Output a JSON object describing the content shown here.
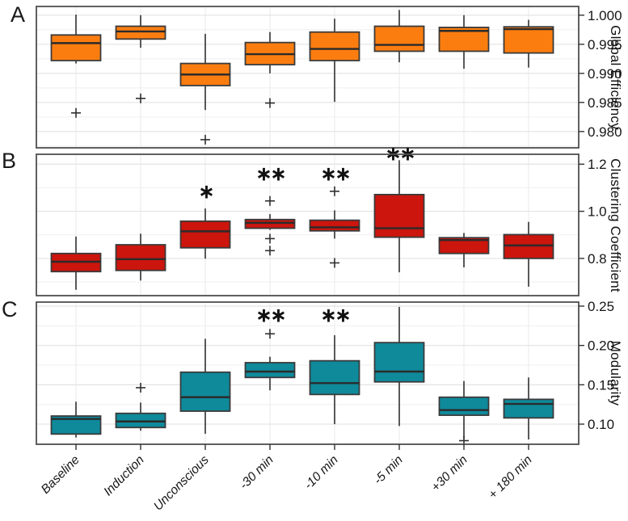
{
  "figure": {
    "background": "#ffffff",
    "panel_border_color": "#4f4f4f",
    "grid_major_color": "#e3e3e3",
    "grid_minor_color": "#efefef",
    "vgrid_color": "#e8e8e8",
    "whisker_color": "#2f2f2f",
    "box_stroke_color": "#3b3b3b",
    "median_color": "#2b2b2b",
    "outlier_marker": "plus",
    "sig_color": "#111111",
    "tick_color": "#333333",
    "tick_label_color": "#161616",
    "categories": [
      "Baseline",
      "Induction",
      "Unconscious",
      "-30 min",
      "-10 min",
      "-5 min",
      "+30 min",
      "+ 180 min"
    ]
  },
  "chart_data": [
    {
      "type": "box",
      "panel_label": "A",
      "ylabel": "Global Efficiency",
      "box_color": "#FB7D10",
      "legend_position": "none",
      "grid": true,
      "categories": [
        "Baseline",
        "Induction",
        "Unconscious",
        "-30 min",
        "-10 min",
        "-5 min",
        "+30 min",
        "+ 180 min"
      ],
      "ylim": [
        0.9772,
        1.0015
      ],
      "yticks": [
        1.0,
        0.995,
        0.99,
        0.985,
        0.98
      ],
      "ytick_labels": [
        "1.000",
        "0.995",
        "0.990",
        "0.985",
        "0.980"
      ],
      "minor_gridlines": [
        0.9775,
        0.9825,
        0.9875,
        0.9925,
        0.9975
      ],
      "boxes": [
        {
          "category": "Baseline",
          "whislo": 0.9917,
          "q1": 0.9922,
          "med": 0.9952,
          "q3": 0.9966,
          "whishi": 1.0001,
          "outliers": [
            0.9832
          ],
          "sig": null,
          "sig_y": null
        },
        {
          "category": "Induction",
          "whislo": 0.9944,
          "q1": 0.9959,
          "med": 0.9972,
          "q3": 0.9981,
          "whishi": 1.0,
          "outliers": [
            0.9857
          ],
          "sig": null,
          "sig_y": null
        },
        {
          "category": "Unconscious",
          "whislo": 0.9837,
          "q1": 0.9879,
          "med": 0.9898,
          "q3": 0.9917,
          "whishi": 0.9968,
          "outliers": [
            0.9786
          ],
          "sig": null,
          "sig_y": null
        },
        {
          "category": "-30 min",
          "whislo": 0.99,
          "q1": 0.9915,
          "med": 0.9933,
          "q3": 0.9953,
          "whishi": 0.9971,
          "outliers": [
            0.9849
          ],
          "sig": null,
          "sig_y": null
        },
        {
          "category": "-10 min",
          "whislo": 0.9851,
          "q1": 0.9922,
          "med": 0.9942,
          "q3": 0.9971,
          "whishi": 0.9994,
          "outliers": [],
          "sig": null,
          "sig_y": null
        },
        {
          "category": "-5 min",
          "whislo": 0.9919,
          "q1": 0.9938,
          "med": 0.9949,
          "q3": 0.9981,
          "whishi": 1.0009,
          "outliers": [],
          "sig": null,
          "sig_y": null
        },
        {
          "category": "+30 min",
          "whislo": 0.9908,
          "q1": 0.9938,
          "med": 0.9973,
          "q3": 0.9979,
          "whishi": 1.0,
          "outliers": [],
          "sig": null,
          "sig_y": null
        },
        {
          "category": "+ 180 min",
          "whislo": 0.991,
          "q1": 0.9935,
          "med": 0.9976,
          "q3": 0.998,
          "whishi": 0.9992,
          "outliers": [],
          "sig": null,
          "sig_y": null
        }
      ]
    },
    {
      "type": "box",
      "panel_label": "B",
      "ylabel": "Clustering Coefficient",
      "box_color": "#CB150D",
      "legend_position": "none",
      "grid": true,
      "categories": [
        "Baseline",
        "Induction",
        "Unconscious",
        "-30 min",
        "-10 min",
        "-5 min",
        "+30 min",
        "+ 180 min"
      ],
      "ylim": [
        0.642,
        1.242
      ],
      "yticks": [
        1.2,
        1.0,
        0.8
      ],
      "ytick_labels": [
        "1.2",
        "1.0",
        "0.8"
      ],
      "minor_gridlines": [
        0.7,
        0.9,
        1.1
      ],
      "boxes": [
        {
          "category": "Baseline",
          "whislo": 0.667,
          "q1": 0.744,
          "med": 0.786,
          "q3": 0.821,
          "whishi": 0.893,
          "outliers": [],
          "sig": null,
          "sig_y": null
        },
        {
          "category": "Induction",
          "whislo": 0.706,
          "q1": 0.749,
          "med": 0.797,
          "q3": 0.858,
          "whishi": 0.905,
          "outliers": [],
          "sig": null,
          "sig_y": null
        },
        {
          "category": "Unconscious",
          "whislo": 0.799,
          "q1": 0.845,
          "med": 0.915,
          "q3": 0.958,
          "whishi": 1.012,
          "outliers": [],
          "sig": "*",
          "sig_y": 1.085
        },
        {
          "category": "-30 min",
          "whislo": 0.921,
          "q1": 0.928,
          "med": 0.951,
          "q3": 0.965,
          "whishi": 0.988,
          "outliers": [
            1.044,
            0.884,
            0.833
          ],
          "sig": "**",
          "sig_y": 1.16
        },
        {
          "category": "-10 min",
          "whislo": 0.884,
          "q1": 0.917,
          "med": 0.932,
          "q3": 0.962,
          "whishi": 1.004,
          "outliers": [
            1.085,
            0.781
          ],
          "sig": "**",
          "sig_y": 1.16
        },
        {
          "category": "-5 min",
          "whislo": 0.741,
          "q1": 0.89,
          "med": 0.928,
          "q3": 1.071,
          "whishi": 1.217,
          "outliers": [],
          "sig": "**",
          "sig_y": 1.246
        },
        {
          "category": "+30 min",
          "whislo": 0.762,
          "q1": 0.821,
          "med": 0.878,
          "q3": 0.888,
          "whishi": 0.908,
          "outliers": [],
          "sig": null,
          "sig_y": null
        },
        {
          "category": "+ 180 min",
          "whislo": 0.68,
          "q1": 0.8,
          "med": 0.855,
          "q3": 0.901,
          "whishi": 0.955,
          "outliers": [],
          "sig": null,
          "sig_y": null
        }
      ]
    },
    {
      "type": "box",
      "panel_label": "C",
      "ylabel": "Modularity",
      "box_color": "#0E8A9B",
      "legend_position": "none",
      "grid": true,
      "categories": [
        "Baseline",
        "Induction",
        "Unconscious",
        "-30 min",
        "-10 min",
        "-5 min",
        "+30 min",
        "+ 180 min"
      ],
      "ylim": [
        0.0744,
        0.2551
      ],
      "yticks": [
        0.25,
        0.2,
        0.15,
        0.1
      ],
      "ytick_labels": [
        "0.25",
        "0.20",
        "0.15",
        "0.10"
      ],
      "minor_gridlines": [
        0.075,
        0.125,
        0.175,
        0.225
      ],
      "boxes": [
        {
          "category": "Baseline",
          "whislo": 0.083,
          "q1": 0.0874,
          "med": 0.1065,
          "q3": 0.1103,
          "whishi": 0.1285,
          "outliers": [],
          "sig": null,
          "sig_y": null
        },
        {
          "category": "Induction",
          "whislo": 0.0916,
          "q1": 0.0957,
          "med": 0.1034,
          "q3": 0.1137,
          "whishi": 0.1274,
          "outliers": [
            0.1463
          ],
          "sig": null,
          "sig_y": null
        },
        {
          "category": "Unconscious",
          "whislo": 0.0877,
          "q1": 0.1165,
          "med": 0.1342,
          "q3": 0.166,
          "whishi": 0.2085,
          "outliers": [],
          "sig": null,
          "sig_y": null
        },
        {
          "category": "-30 min",
          "whislo": 0.143,
          "q1": 0.1593,
          "med": 0.1668,
          "q3": 0.1781,
          "whishi": 0.1857,
          "outliers": [
            0.2148
          ],
          "sig": "**",
          "sig_y": 0.2385
        },
        {
          "category": "-10 min",
          "whislo": 0.1,
          "q1": 0.1377,
          "med": 0.1521,
          "q3": 0.1805,
          "whishi": 0.213,
          "outliers": [],
          "sig": "**",
          "sig_y": 0.2385
        },
        {
          "category": "-5 min",
          "whislo": 0.0976,
          "q1": 0.1537,
          "med": 0.1668,
          "q3": 0.2036,
          "whishi": 0.249,
          "outliers": [],
          "sig": null,
          "sig_y": null
        },
        {
          "category": "+30 min",
          "whislo": 0.0815,
          "q1": 0.1113,
          "med": 0.1178,
          "q3": 0.1342,
          "whishi": 0.1548,
          "outliers": [
            0.079
          ],
          "sig": null,
          "sig_y": null
        },
        {
          "category": "+ 180 min",
          "whislo": 0.0805,
          "q1": 0.1079,
          "med": 0.1257,
          "q3": 0.1315,
          "whishi": 0.1593,
          "outliers": [],
          "sig": null,
          "sig_y": null
        }
      ]
    }
  ]
}
